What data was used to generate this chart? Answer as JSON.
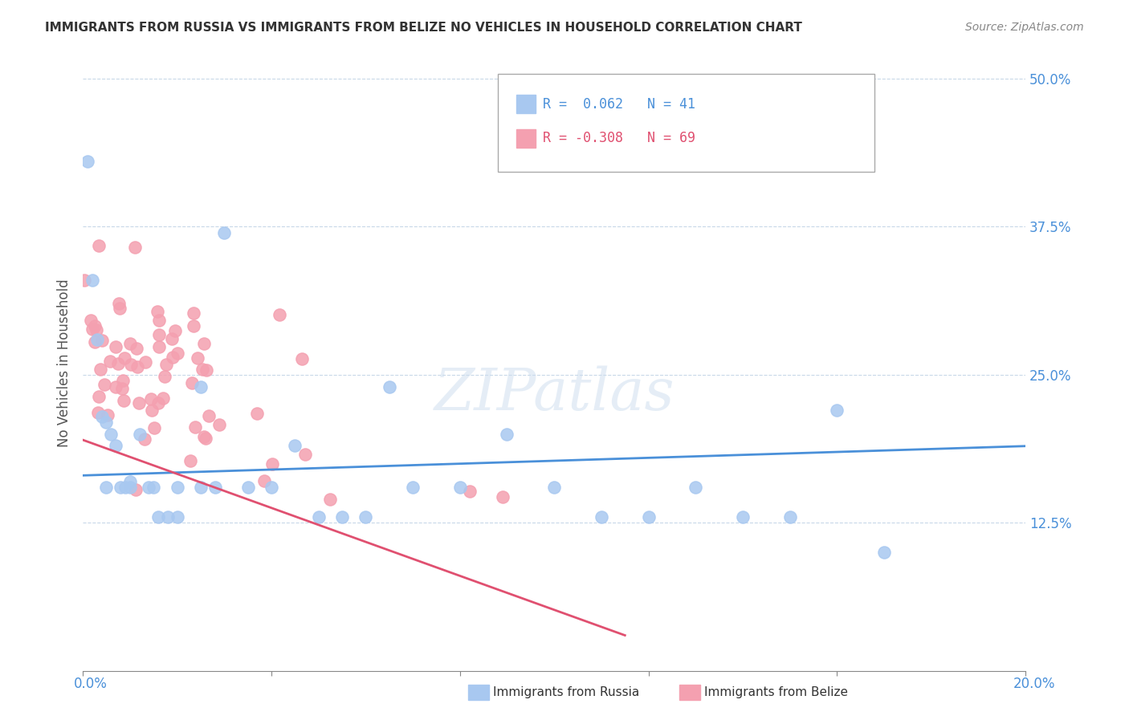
{
  "title": "IMMIGRANTS FROM RUSSIA VS IMMIGRANTS FROM BELIZE NO VEHICLES IN HOUSEHOLD CORRELATION CHART",
  "source": "Source: ZipAtlas.com",
  "ylabel": "No Vehicles in Household",
  "xlim": [
    0.0,
    0.2
  ],
  "ylim": [
    0.0,
    0.52
  ],
  "russia_R": 0.062,
  "russia_N": 41,
  "russia_color": "#a8c8f0",
  "russia_line_color": "#4a90d9",
  "russia_label": "Immigrants from Russia",
  "belize_R": -0.308,
  "belize_N": 69,
  "belize_color": "#f4a0b0",
  "belize_line_color": "#e05070",
  "belize_label": "Immigrants from Belize",
  "watermark": "ZIPatlas",
  "background_color": "#ffffff",
  "grid_color": "#c8d8e8",
  "title_fontsize": 11,
  "axis_label_color": "#4a90d9",
  "title_color": "#333333",
  "ytick_vals": [
    0.125,
    0.25,
    0.375,
    0.5
  ],
  "ytick_labels": [
    "12.5%",
    "25.0%",
    "37.5%",
    "50.0%"
  ]
}
